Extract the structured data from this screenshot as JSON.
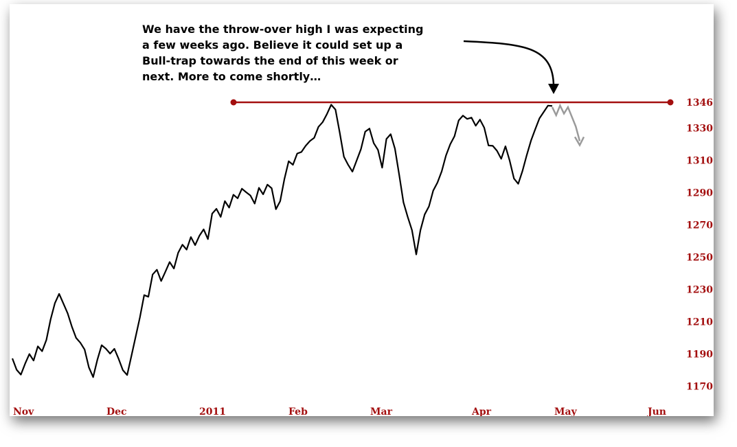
{
  "chart_data": {
    "type": "line",
    "title": "",
    "xlabel": "",
    "ylabel": "",
    "x_ticks": [
      "Nov",
      "Dec",
      "2011",
      "Feb",
      "Mar",
      "Apr",
      "May",
      "Jun"
    ],
    "y_ticks": [
      "1346",
      "1330",
      "1310",
      "1290",
      "1270",
      "1250",
      "1230",
      "1210",
      "1190",
      "1170"
    ],
    "ylim": [
      1170,
      1346
    ],
    "series": [
      {
        "values": [
          1186,
          1180,
          1178,
          1183,
          1190,
          1187,
          1194,
          1192,
          1200,
          1211,
          1222,
          1226,
          1221,
          1216,
          1206,
          1200,
          1198,
          1192,
          1182,
          1177,
          1186,
          1196,
          1192,
          1190,
          1194,
          1186,
          1180,
          1178,
          1188,
          1201,
          1214,
          1226,
          1226,
          1238,
          1242,
          1236,
          1240,
          1247,
          1244,
          1252,
          1258,
          1256,
          1262,
          1258,
          1262,
          1267,
          1262,
          1276,
          1280,
          1276,
          1284,
          1281,
          1290,
          1286,
          1293,
          1289,
          1288,
          1284,
          1292,
          1289,
          1296,
          1292,
          1280,
          1286,
          1298,
          1310,
          1306,
          1314,
          1316,
          1318,
          1322,
          1325,
          1330,
          1334,
          1340,
          1344,
          1342,
          1326,
          1312,
          1308,
          1302,
          1310,
          1318,
          1327,
          1330,
          1322,
          1316,
          1306,
          1322,
          1326,
          1318,
          1300,
          1284,
          1276,
          1266,
          1252,
          1268,
          1276,
          1282,
          1290,
          1296,
          1304,
          1312,
          1320,
          1326,
          1334,
          1338,
          1337,
          1336,
          1332,
          1334,
          1330,
          1320,
          1318,
          1316,
          1312,
          1318,
          1310,
          1300,
          1295,
          1304,
          1312,
          1322,
          1330,
          1335,
          1340,
          1345,
          1343
        ]
      }
    ],
    "resistance": {
      "value": 1346
    },
    "projection": {
      "values": [
        1343,
        1338,
        1344,
        1339,
        1343,
        1337,
        1331,
        1322
      ]
    },
    "annotation": "We have the throw-over high I was expecting a few weeks ago. Believe it could set up a Bull-trap towards the end of this week or next. More to come shortly…",
    "annotation_lines": [
      "We have the throw-over high I was expecting",
      "a few weeks ago. Believe it could set up a",
      "Bull-trap towards the end of this week or",
      "next. More to come shortly…"
    ],
    "colors": {
      "price": "#000000",
      "axis_text": "#a30f0f",
      "resistance": "#a30f0f",
      "projection": "#9a9a9a"
    }
  }
}
